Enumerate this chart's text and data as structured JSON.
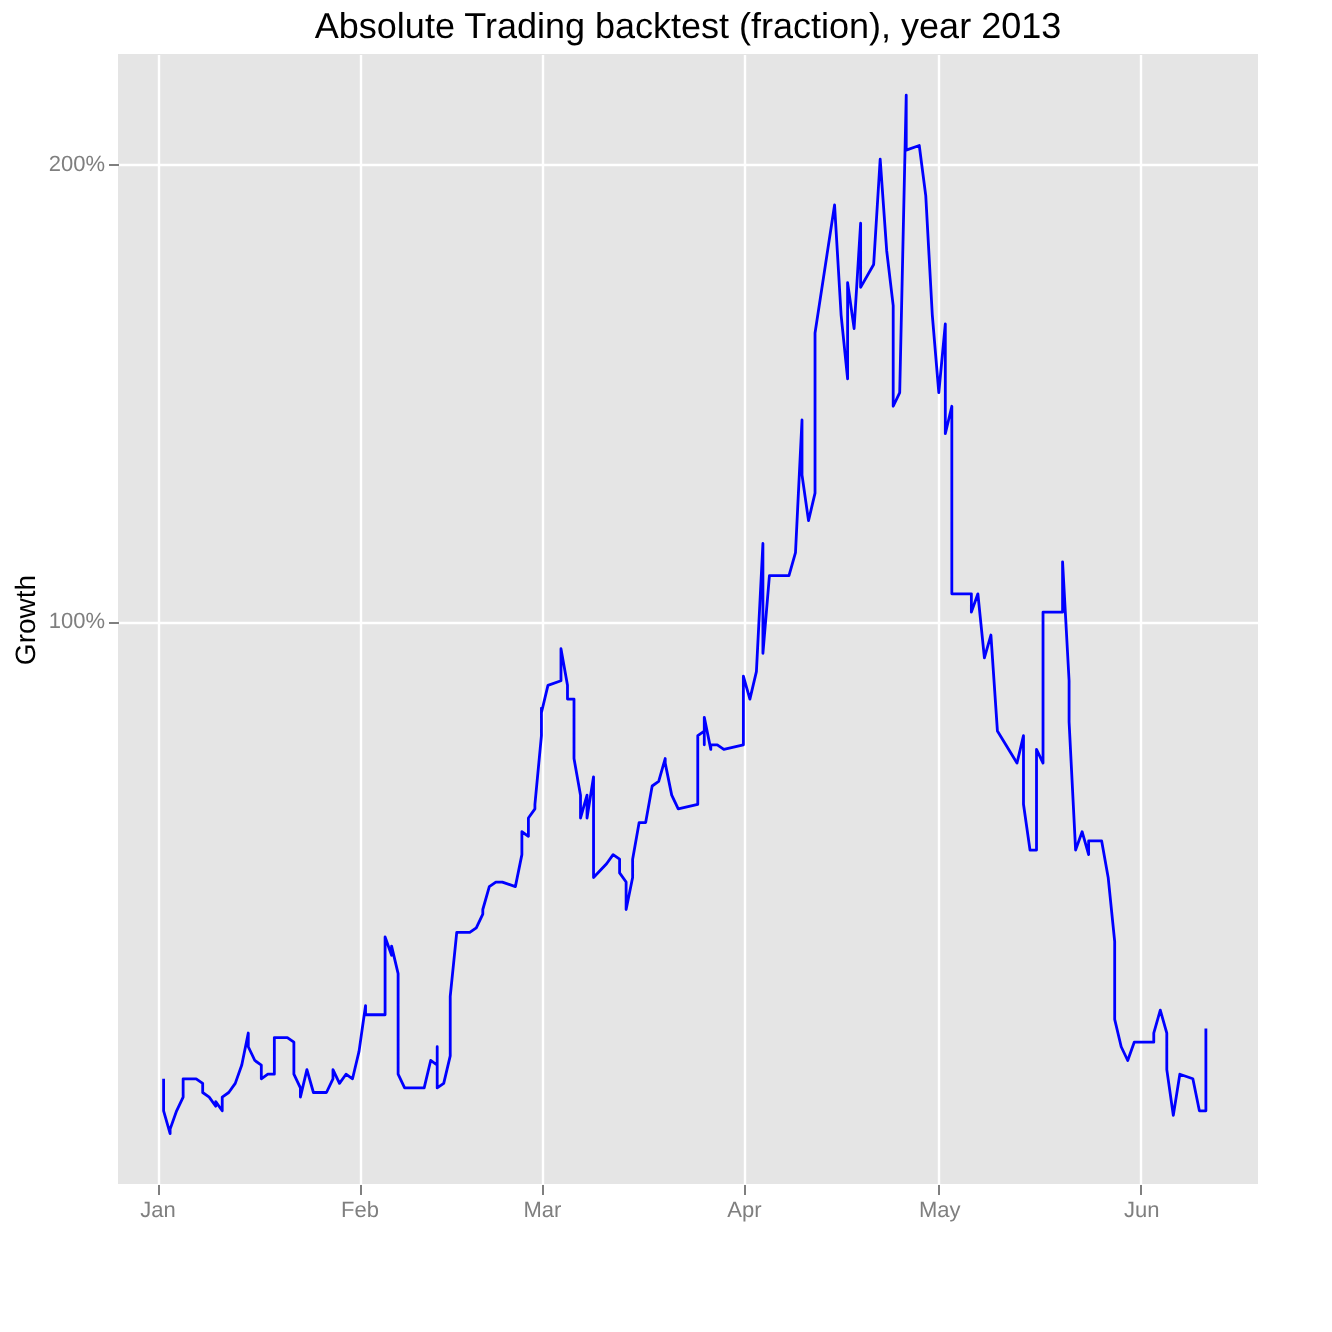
{
  "chart_data": {
    "type": "line",
    "title": "Absolute Trading backtest (fraction), year 2013",
    "ylabel": "Growth",
    "xlim": [
      "2012-12-26",
      "2013-06-19"
    ],
    "xticks": [
      {
        "value": "2013-01-01",
        "label": "Jan"
      },
      {
        "value": "2013-02-01",
        "label": "Feb"
      },
      {
        "value": "2013-03-01",
        "label": "Mar"
      },
      {
        "value": "2013-04-01",
        "label": "Apr"
      },
      {
        "value": "2013-05-01",
        "label": "May"
      },
      {
        "value": "2013-06-01",
        "label": "Jun"
      }
    ],
    "ylim": [
      -23,
      224
    ],
    "yticks": [
      {
        "value": 100,
        "label": "100%"
      },
      {
        "value": 200,
        "label": "200%"
      }
    ],
    "grid": true,
    "line_style": "solid",
    "series": [
      {
        "color": "#0000ff",
        "x": [
          "2013-01-02",
          "2013-01-02",
          "2013-01-03",
          "2013-01-03",
          "2013-01-04",
          "2013-01-05",
          "2013-01-05",
          "2013-01-07",
          "2013-01-08",
          "2013-01-08",
          "2013-01-09",
          "2013-01-10",
          "2013-01-10",
          "2013-01-11",
          "2013-01-11",
          "2013-01-12",
          "2013-01-13",
          "2013-01-14",
          "2013-01-15",
          "2013-01-15",
          "2013-01-16",
          "2013-01-17",
          "2013-01-17",
          "2013-01-18",
          "2013-01-19",
          "2013-01-19",
          "2013-01-21",
          "2013-01-22",
          "2013-01-22",
          "2013-01-23",
          "2013-01-23",
          "2013-01-24",
          "2013-01-25",
          "2013-01-27",
          "2013-01-28",
          "2013-01-28",
          "2013-01-29",
          "2013-01-30",
          "2013-01-31",
          "2013-02-01",
          "2013-02-02",
          "2013-02-02",
          "2013-02-04",
          "2013-02-05",
          "2013-02-05",
          "2013-02-06",
          "2013-02-06",
          "2013-02-07",
          "2013-02-07",
          "2013-02-08",
          "2013-02-11",
          "2013-02-12",
          "2013-02-13",
          "2013-02-13",
          "2013-02-13",
          "2013-02-14",
          "2013-02-15",
          "2013-02-15",
          "2013-02-16",
          "2013-02-18",
          "2013-02-19",
          "2013-02-20",
          "2013-02-20",
          "2013-02-21",
          "2013-02-22",
          "2013-02-23",
          "2013-02-25",
          "2013-02-26",
          "2013-02-26",
          "2013-02-27",
          "2013-02-27",
          "2013-02-28",
          "2013-02-28",
          "2013-03-01",
          "2013-03-01",
          "2013-03-01",
          "2013-03-02",
          "2013-03-04",
          "2013-03-04",
          "2013-03-05",
          "2013-03-05",
          "2013-03-06",
          "2013-03-06",
          "2013-03-07",
          "2013-03-07",
          "2013-03-08",
          "2013-03-08",
          "2013-03-09",
          "2013-03-09",
          "2013-03-11",
          "2013-03-12",
          "2013-03-13",
          "2013-03-13",
          "2013-03-14",
          "2013-03-14",
          "2013-03-14",
          "2013-03-15",
          "2013-03-15",
          "2013-03-15",
          "2013-03-16",
          "2013-03-17",
          "2013-03-18",
          "2013-03-18",
          "2013-03-19",
          "2013-03-19",
          "2013-03-20",
          "2013-03-20",
          "2013-03-21",
          "2013-03-22",
          "2013-03-25",
          "2013-03-25",
          "2013-03-26",
          "2013-03-26",
          "2013-03-26",
          "2013-03-27",
          "2013-03-27",
          "2013-03-28",
          "2013-03-29",
          "2013-04-01",
          "2013-04-01",
          "2013-04-02",
          "2013-04-03",
          "2013-04-04",
          "2013-04-04",
          "2013-04-05",
          "2013-04-08",
          "2013-04-09",
          "2013-04-10",
          "2013-04-10",
          "2013-04-11",
          "2013-04-12",
          "2013-04-12",
          "2013-04-15",
          "2013-04-16",
          "2013-04-17",
          "2013-04-17",
          "2013-04-18",
          "2013-04-19",
          "2013-04-19",
          "2013-04-21",
          "2013-04-22",
          "2013-04-23",
          "2013-04-24",
          "2013-04-24",
          "2013-04-25",
          "2013-04-26",
          "2013-04-26",
          "2013-04-28",
          "2013-04-29",
          "2013-04-30",
          "2013-05-01",
          "2013-05-02",
          "2013-05-02",
          "2013-05-03",
          "2013-05-03",
          "2013-05-06",
          "2013-05-06",
          "2013-05-07",
          "2013-05-08",
          "2013-05-09",
          "2013-05-10",
          "2013-05-13",
          "2013-05-14",
          "2013-05-14",
          "2013-05-15",
          "2013-05-16",
          "2013-05-16",
          "2013-05-17",
          "2013-05-17",
          "2013-05-20",
          "2013-05-20",
          "2013-05-21",
          "2013-05-21",
          "2013-05-22",
          "2013-05-23",
          "2013-05-24",
          "2013-05-24",
          "2013-05-26",
          "2013-05-27",
          "2013-05-28",
          "2013-05-28",
          "2013-05-29",
          "2013-05-30",
          "2013-05-31",
          "2013-06-03",
          "2013-06-03",
          "2013-06-04",
          "2013-06-05",
          "2013-06-05",
          "2013-06-06",
          "2013-06-07",
          "2013-06-09",
          "2013-06-10",
          "2013-06-11",
          "2013-06-11"
        ],
        "values": [
          0,
          -7,
          -12,
          -11,
          -7,
          -4,
          0,
          0,
          -1,
          -3,
          -4,
          -6,
          -5,
          -7,
          -4,
          -3,
          -1,
          3,
          10,
          7,
          4,
          3,
          0,
          1,
          1,
          9,
          9,
          8,
          1,
          -2,
          -4,
          2,
          -3,
          -3,
          0,
          2,
          -1,
          1,
          0,
          6,
          16,
          14,
          14,
          14,
          31,
          27,
          29,
          23,
          1,
          -2,
          -2,
          4,
          3,
          7,
          -2,
          -1,
          5,
          18,
          32,
          32,
          33,
          36,
          37,
          42,
          43,
          43,
          42,
          49,
          54,
          53,
          57,
          59,
          60,
          75,
          81,
          80,
          86,
          87,
          94,
          86,
          83,
          83,
          70,
          62,
          57,
          62,
          57,
          66,
          44,
          47,
          49,
          48,
          45,
          43,
          37,
          37,
          44,
          47,
          48,
          56,
          56,
          64,
          64,
          65,
          65,
          70,
          69,
          62,
          59,
          60,
          75,
          76,
          73,
          79,
          72,
          73,
          73,
          72,
          73,
          88,
          83,
          89,
          117,
          93,
          110,
          110,
          115,
          144,
          132,
          122,
          128,
          163,
          191,
          167,
          153,
          174,
          164,
          187,
          173,
          178,
          201,
          181,
          169,
          147,
          150,
          215,
          203,
          204,
          193,
          167,
          150,
          165,
          141,
          147,
          106,
          106,
          102,
          106,
          92,
          97,
          76,
          69,
          75,
          60,
          50,
          50,
          72,
          69,
          102,
          102,
          113,
          87,
          78,
          50,
          54,
          49,
          52,
          52,
          44,
          30,
          13,
          7,
          4,
          8,
          8,
          10,
          15,
          10,
          2,
          -8,
          1,
          0,
          -7,
          -7,
          11
        ]
      }
    ]
  }
}
